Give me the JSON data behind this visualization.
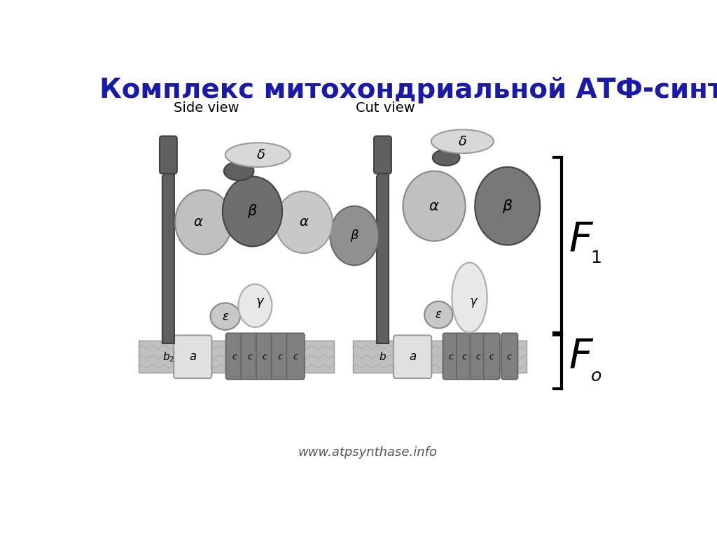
{
  "title": "Комплекс митохондриальной АТФ-синтазы:",
  "title_color": "#1a1aaa",
  "title_fontsize": 28,
  "bg_color": "#ffffff",
  "label_side": "Side view",
  "label_cut": "Cut view",
  "watermark": "www.atpsynthase.info",
  "dark_gray": "#777777",
  "mid_gray": "#999999",
  "light_gray": "#bbbbbb",
  "very_light": "#d4d4d4",
  "white_ish": "#e8e8e8",
  "darkest": "#555555"
}
